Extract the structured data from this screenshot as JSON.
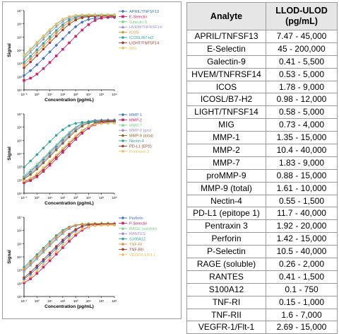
{
  "table": {
    "headers": [
      "Analyte",
      "LLOD-ULOD\n(pg/mL)"
    ],
    "rows": [
      [
        "APRIL/TNFSF13",
        "7.47 - 45,000"
      ],
      [
        "E-Selectin",
        "45 - 200,000"
      ],
      [
        "Galectin-9",
        "0.41 - 5,500"
      ],
      [
        "HVEM/TNFRSF14",
        "0.53 - 5,000"
      ],
      [
        "ICOS",
        "1.78 - 9,000"
      ],
      [
        "ICOSL/B7-H2",
        "0.98 - 12,000"
      ],
      [
        "LIGHT/TNFSF14",
        "0.58 - 5,000"
      ],
      [
        "MIG",
        "0.73 - 4,000"
      ],
      [
        "MMP-1",
        "1.35 - 15,000"
      ],
      [
        "MMP-2",
        "10.4 - 40,000"
      ],
      [
        "MMP-7",
        "1.83 - 9,000"
      ],
      [
        "proMMP-9",
        "0.88 - 15,000"
      ],
      [
        "MMP-9 (total)",
        "1.61 - 10,000"
      ],
      [
        "Nectin-4",
        "0.55 - 1,500"
      ],
      [
        "PD-L1 (epitope 1)",
        "11.7 - 40,000"
      ],
      [
        "Pentraxin 3",
        "1.92 - 20,000"
      ],
      [
        "Perforin",
        "1.42 - 15,000"
      ],
      [
        "P-Selectin",
        "10.5 - 40,000"
      ],
      [
        "RAGE (soluble)",
        "0.26 - 2,000"
      ],
      [
        "RANTES",
        "0.41 - 1,500"
      ],
      [
        "S100A12",
        "0.1 - 750"
      ],
      [
        "TNF-RI",
        "0.15 - 1,000"
      ],
      [
        "TNF-RII",
        "1.6 - 7,000"
      ],
      [
        "VEGFR-1/Flt-1",
        "2.69 - 15,000"
      ]
    ]
  },
  "chart_data": [
    {
      "type": "line",
      "xlabel": "Concentration (pg/mL)",
      "ylabel": "Signal",
      "xscale": "log",
      "yscale": "log",
      "xlim": [
        0.1,
        1000000
      ],
      "ylim": [
        10,
        10000000
      ],
      "xticks": [
        "10⁻¹",
        "10⁰",
        "10¹",
        "10²",
        "10³",
        "10⁴",
        "10⁵",
        "10⁶"
      ],
      "yticks": [
        "10¹",
        "10²",
        "10³",
        "10⁴",
        "10⁵",
        "10⁶",
        "10⁷"
      ],
      "legend_position": "right",
      "series": [
        {
          "name": "APRIL/TNFSF13",
          "color": "#3a6fc4",
          "marker": "diamond",
          "ec50": 4000,
          "bottom": 50,
          "top": 3000000,
          "hill": 1.0
        },
        {
          "name": "E-Selectin",
          "color": "#d2226a",
          "marker": "square",
          "ec50": 30000,
          "bottom": 40,
          "top": 3500000,
          "hill": 1.0
        },
        {
          "name": "Galectin-9",
          "color": "#7ad08a",
          "marker": "circle",
          "ec50": 150,
          "bottom": 100,
          "top": 5000000,
          "hill": 1.0
        },
        {
          "name": "HVEM/TNFRSF14",
          "color": "#a08fc8",
          "marker": "triangle",
          "ec50": 200,
          "bottom": 120,
          "top": 4500000,
          "hill": 1.0
        },
        {
          "name": "ICOS",
          "color": "#e0903c",
          "marker": "circle",
          "ec50": 600,
          "bottom": 80,
          "top": 4000000,
          "hill": 1.0
        },
        {
          "name": "ICOSL/B7-H2",
          "color": "#2fa39a",
          "marker": "circle",
          "ec50": 400,
          "bottom": 110,
          "top": 4300000,
          "hill": 1.0
        },
        {
          "name": "LIGHT/TNFSF14",
          "color": "#a33a2b",
          "marker": "circle",
          "ec50": 1000,
          "bottom": 90,
          "top": 3800000,
          "hill": 1.0
        },
        {
          "name": "MIG",
          "color": "#e8c060",
          "marker": "circle",
          "ec50": 120,
          "bottom": 150,
          "top": 4800000,
          "hill": 1.0
        }
      ]
    },
    {
      "type": "line",
      "xlabel": "Concentration (pg/mL)",
      "ylabel": "Signal",
      "xscale": "log",
      "yscale": "log",
      "xlim": [
        0.1,
        1000000
      ],
      "ylim": [
        10,
        10000000
      ],
      "xticks": [
        "10⁻¹",
        "10⁰",
        "10¹",
        "10²",
        "10³",
        "10⁴",
        "10⁵",
        "10⁶"
      ],
      "yticks": [
        "10¹",
        "10²",
        "10³",
        "10⁴",
        "10⁵",
        "10⁶",
        "10⁷"
      ],
      "legend_position": "right",
      "series": [
        {
          "name": "MMP-1",
          "color": "#3a6fc4",
          "marker": "diamond",
          "ec50": 3000,
          "bottom": 60,
          "top": 3500000,
          "hill": 1.0
        },
        {
          "name": "MMP-2",
          "color": "#d2226a",
          "marker": "square",
          "ec50": 20000,
          "bottom": 50,
          "top": 2500000,
          "hill": 1.0
        },
        {
          "name": "MMP-7",
          "color": "#7ad08a",
          "marker": "triangle",
          "ec50": 2000,
          "bottom": 80,
          "top": 3000000,
          "hill": 1.0
        },
        {
          "name": "MMP-9 (pro)",
          "color": "#a08fc8",
          "marker": "circle",
          "ec50": 4000,
          "bottom": 70,
          "top": 3200000,
          "hill": 1.0
        },
        {
          "name": "MMP-9 (total)",
          "color": "#7d6a2b",
          "marker": "circle",
          "ec50": 5000,
          "bottom": 65,
          "top": 3000000,
          "hill": 1.0
        },
        {
          "name": "Nectin-4",
          "color": "#2fa39a",
          "marker": "circle",
          "ec50": 300,
          "bottom": 100,
          "top": 2500000,
          "hill": 1.0
        },
        {
          "name": "PD-L1 (EP2)",
          "color": "#a33a2b",
          "marker": "circle",
          "ec50": 15000,
          "bottom": 55,
          "top": 2800000,
          "hill": 1.0
        },
        {
          "name": "Pentraxin 3",
          "color": "#e8c060",
          "marker": "circle",
          "ec50": 8000,
          "bottom": 60,
          "top": 2000000,
          "hill": 1.0
        }
      ]
    },
    {
      "type": "line",
      "xlabel": "Concentration (pg/mL)",
      "ylabel": "Signal",
      "xscale": "log",
      "yscale": "log",
      "xlim": [
        0.1,
        1000000
      ],
      "ylim": [
        10,
        10000000
      ],
      "xticks": [
        "10⁻¹",
        "10⁰",
        "10¹",
        "10²",
        "10³",
        "10⁴",
        "10⁵",
        "10⁶"
      ],
      "yticks": [
        "10¹",
        "10²",
        "10³",
        "10⁴",
        "10⁵",
        "10⁶",
        "10⁷"
      ],
      "legend_position": "right",
      "series": [
        {
          "name": "Perforin",
          "color": "#3a6fc4",
          "marker": "diamond",
          "ec50": 2500,
          "bottom": 70,
          "top": 3500000,
          "hill": 1.0
        },
        {
          "name": "P-Selectin",
          "color": "#d2226a",
          "marker": "square",
          "ec50": 6000,
          "bottom": 60,
          "top": 3000000,
          "hill": 1.0
        },
        {
          "name": "RAGE (soluble)",
          "color": "#7ad08a",
          "marker": "triangle",
          "ec50": 500,
          "bottom": 100,
          "top": 3500000,
          "hill": 1.0
        },
        {
          "name": "RANTES",
          "color": "#a08fc8",
          "marker": "circle",
          "ec50": 400,
          "bottom": 90,
          "top": 3200000,
          "hill": 1.0
        },
        {
          "name": "S100A12",
          "color": "#2fa39a",
          "marker": "circle",
          "ec50": 200,
          "bottom": 110,
          "top": 3000000,
          "hill": 1.0
        },
        {
          "name": "TNF-RI",
          "color": "#e0903c",
          "marker": "circle",
          "ec50": 300,
          "bottom": 80,
          "top": 3300000,
          "hill": 1.0
        },
        {
          "name": "TNF-RII",
          "color": "#a33a2b",
          "marker": "circle",
          "ec50": 1500,
          "bottom": 70,
          "top": 3000000,
          "hill": 1.0
        },
        {
          "name": "VEGFR-1/Flt-1",
          "color": "#e8c060",
          "marker": "circle",
          "ec50": 3000,
          "bottom": 60,
          "top": 2500000,
          "hill": 1.0
        }
      ]
    }
  ]
}
